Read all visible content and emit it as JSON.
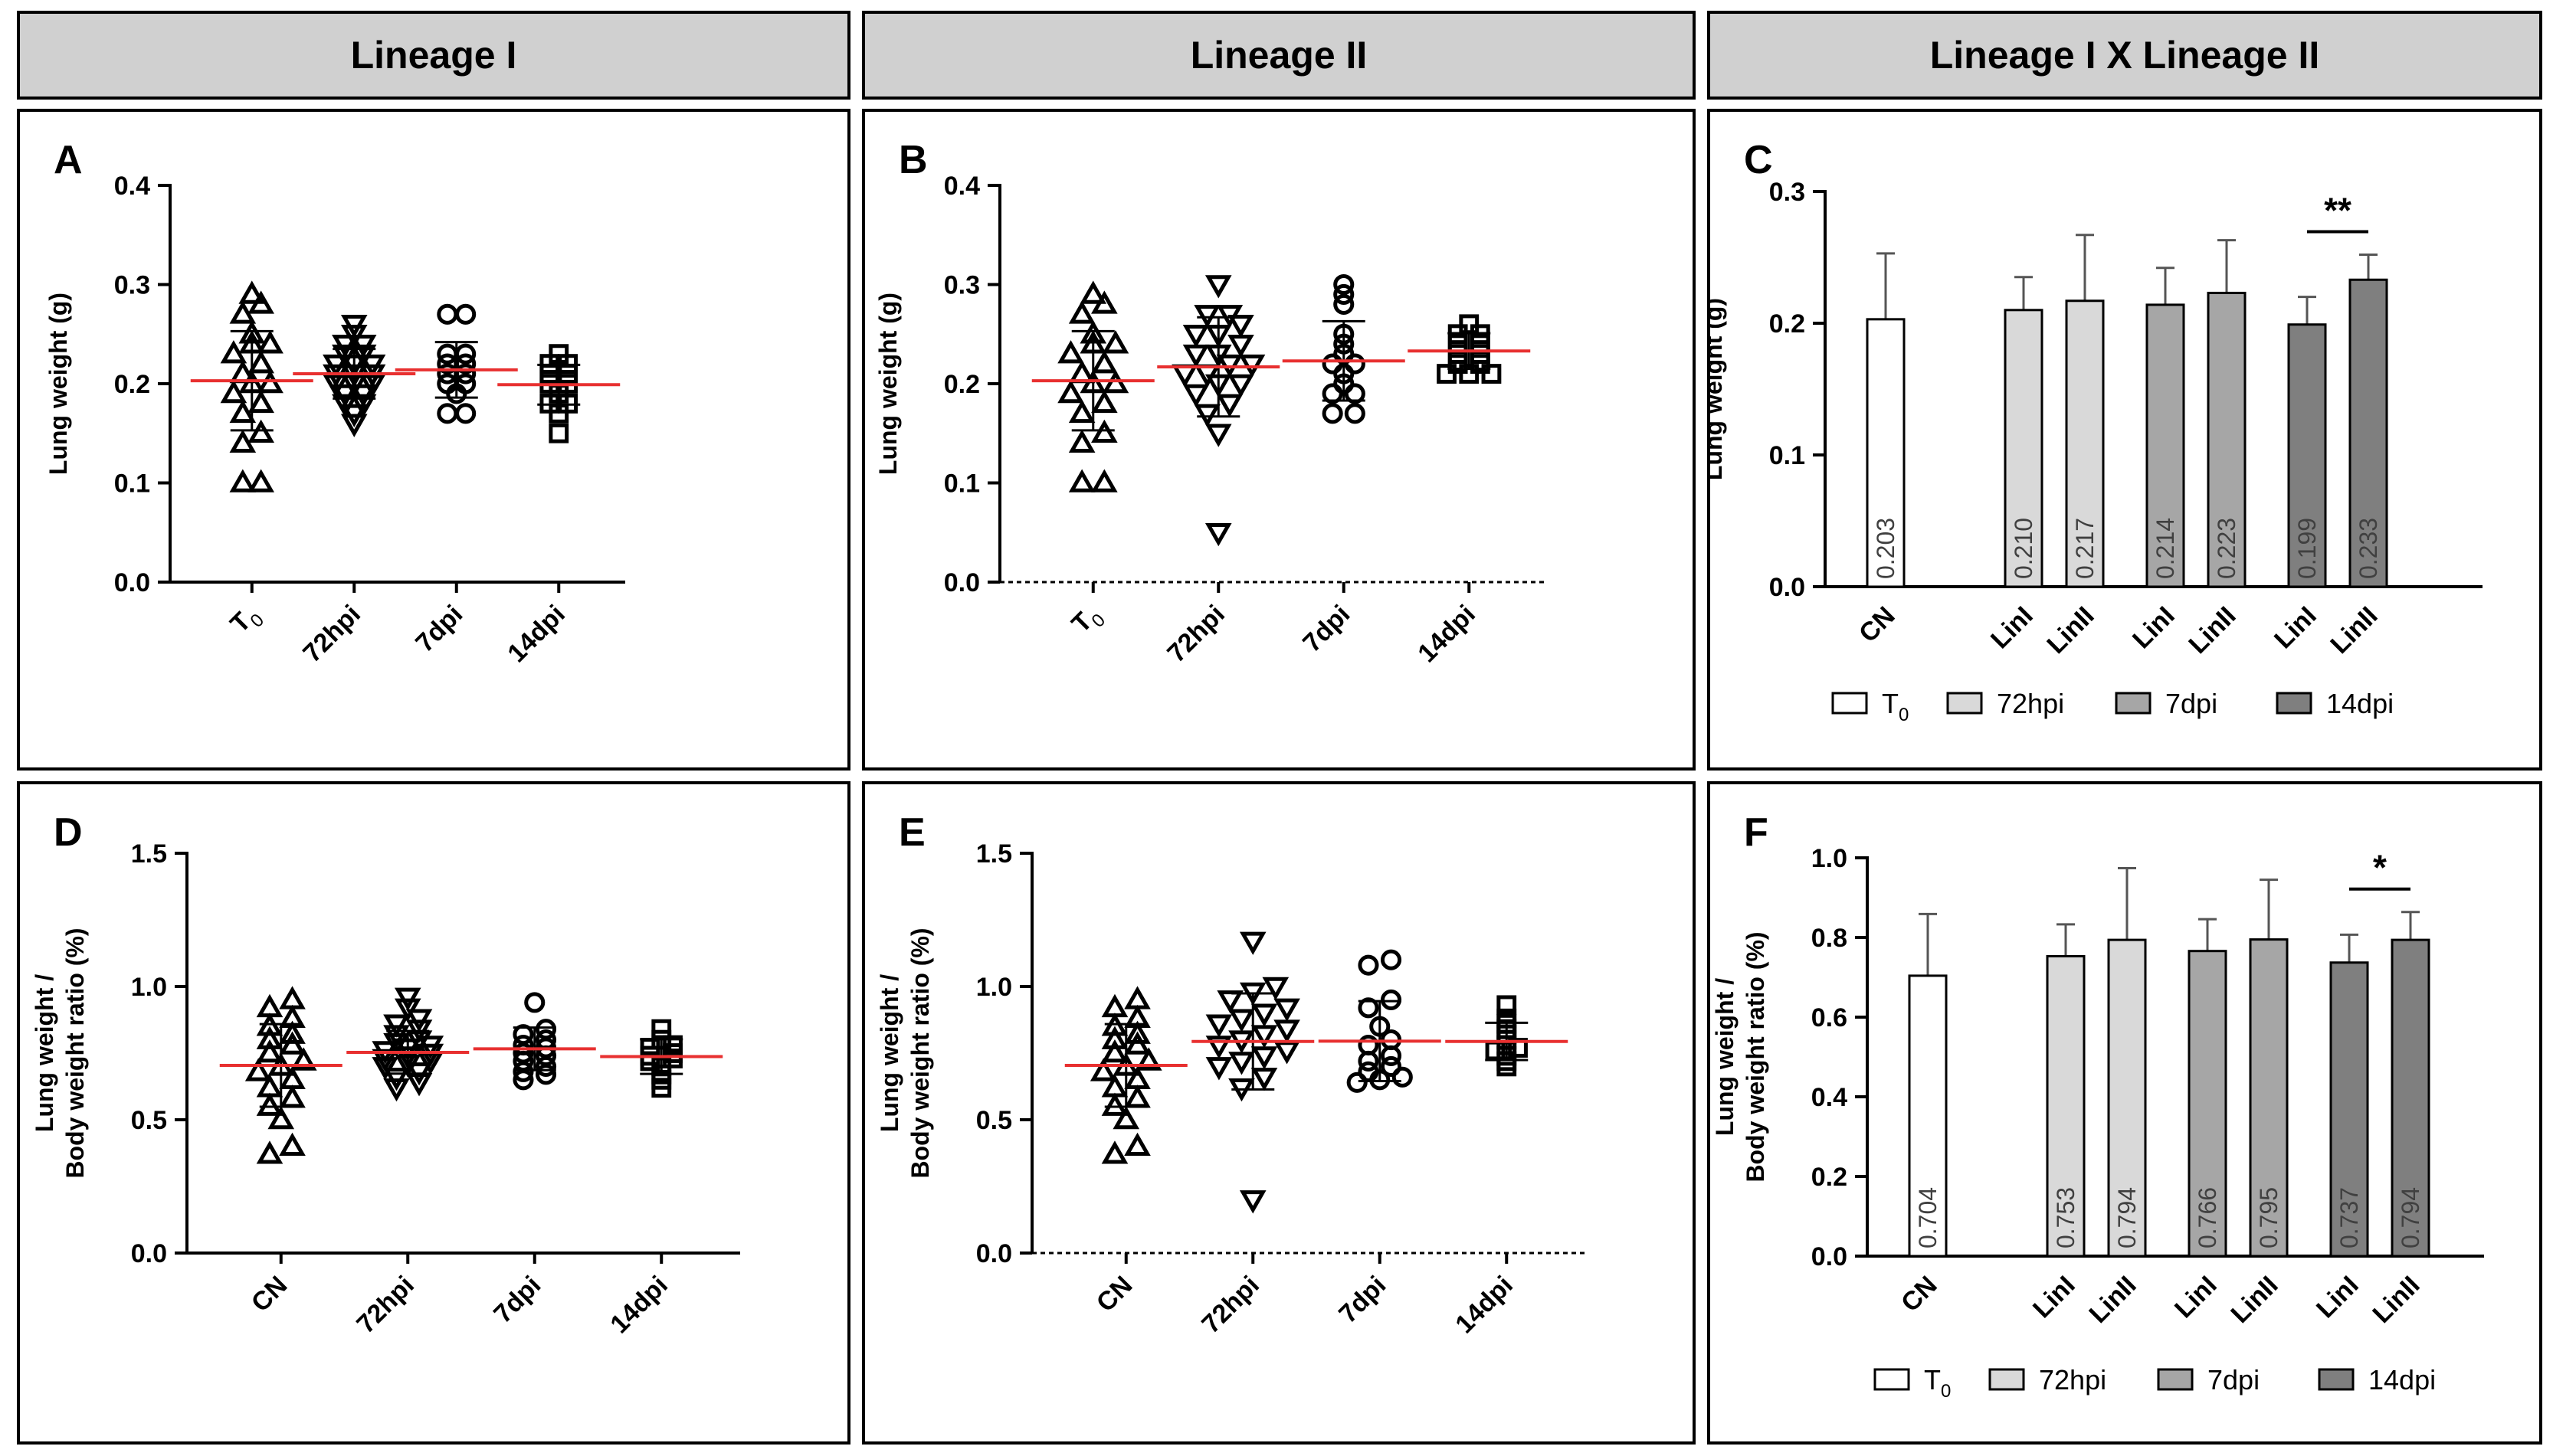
{
  "headers": [
    "Lineage I",
    "Lineage II",
    "Lineage I X Lineage II"
  ],
  "colors": {
    "mean_line": "#e83030",
    "bar_T0": "#ffffff",
    "bar_72hpi": "#d9d9d9",
    "bar_7dpi": "#a6a6a6",
    "bar_14dpi": "#7f7f7f"
  },
  "chart_data": [
    {
      "id": "A",
      "type": "scatter",
      "letter": "A",
      "ylabel": [
        "Lung weight (g)"
      ],
      "ylim": [
        0,
        0.4
      ],
      "yticks": [
        0.0,
        0.1,
        0.2,
        0.3,
        0.4
      ],
      "ytick_labels": [
        "0.0",
        "0.1",
        "0.2",
        "0.3",
        "0.4"
      ],
      "categories": [
        "T0",
        "72hpi",
        "7dpi",
        "14dpi"
      ],
      "tick_labels": [
        "T",
        "72hpi",
        "7dpi",
        "14dpi"
      ],
      "groups": [
        {
          "name": "T0",
          "marker": "triangle-up",
          "mean": 0.203,
          "sd": 0.05,
          "values": [
            0.1,
            0.1,
            0.14,
            0.15,
            0.17,
            0.18,
            0.19,
            0.2,
            0.2,
            0.21,
            0.22,
            0.23,
            0.24,
            0.24,
            0.25,
            0.27,
            0.28,
            0.29
          ]
        },
        {
          "name": "72hpi",
          "marker": "triangle-down",
          "mean": 0.21,
          "sd": 0.025,
          "values": [
            0.16,
            0.17,
            0.18,
            0.18,
            0.19,
            0.19,
            0.2,
            0.2,
            0.2,
            0.21,
            0.21,
            0.21,
            0.22,
            0.22,
            0.22,
            0.23,
            0.23,
            0.24,
            0.24,
            0.25,
            0.26
          ]
        },
        {
          "name": "7dpi",
          "marker": "circle",
          "mean": 0.214,
          "sd": 0.028,
          "values": [
            0.17,
            0.17,
            0.19,
            0.2,
            0.2,
            0.21,
            0.21,
            0.22,
            0.22,
            0.23,
            0.23,
            0.27,
            0.27
          ]
        },
        {
          "name": "14dpi",
          "marker": "square",
          "mean": 0.199,
          "sd": 0.02,
          "values": [
            0.15,
            0.17,
            0.18,
            0.18,
            0.19,
            0.2,
            0.2,
            0.21,
            0.21,
            0.22,
            0.22,
            0.23
          ]
        }
      ]
    },
    {
      "id": "B",
      "type": "scatter",
      "letter": "B",
      "ylabel": [
        "Lung weight (g)"
      ],
      "ylim": [
        0,
        0.4
      ],
      "yticks": [
        0.0,
        0.1,
        0.2,
        0.3,
        0.4
      ],
      "ytick_labels": [
        "0.0",
        "0.1",
        "0.2",
        "0.3",
        "0.4"
      ],
      "categories": [
        "T0",
        "72hpi",
        "7dpi",
        "14dpi"
      ],
      "tick_labels": [
        "T",
        "72hpi",
        "7dpi",
        "14dpi"
      ],
      "groups": [
        {
          "name": "T0",
          "marker": "triangle-up",
          "mean": 0.203,
          "sd": 0.05,
          "values": [
            0.1,
            0.1,
            0.14,
            0.15,
            0.17,
            0.18,
            0.19,
            0.2,
            0.2,
            0.21,
            0.22,
            0.23,
            0.24,
            0.24,
            0.25,
            0.27,
            0.28,
            0.29
          ]
        },
        {
          "name": "72hpi",
          "marker": "triangle-down",
          "mean": 0.217,
          "sd": 0.05,
          "values": [
            0.05,
            0.15,
            0.17,
            0.18,
            0.19,
            0.2,
            0.2,
            0.21,
            0.21,
            0.22,
            0.22,
            0.23,
            0.23,
            0.24,
            0.25,
            0.25,
            0.26,
            0.27,
            0.27,
            0.3
          ]
        },
        {
          "name": "7dpi",
          "marker": "circle",
          "mean": 0.223,
          "sd": 0.04,
          "values": [
            0.17,
            0.17,
            0.19,
            0.19,
            0.2,
            0.21,
            0.22,
            0.22,
            0.23,
            0.24,
            0.25,
            0.28,
            0.29,
            0.3
          ]
        },
        {
          "name": "14dpi",
          "marker": "square",
          "mean": 0.233,
          "sd": 0.018,
          "values": [
            0.21,
            0.21,
            0.21,
            0.22,
            0.22,
            0.23,
            0.23,
            0.24,
            0.24,
            0.25,
            0.25,
            0.26
          ]
        }
      ]
    },
    {
      "id": "C",
      "type": "bar",
      "letter": "C",
      "ylabel": [
        "Lung weight (g)"
      ],
      "ylim": [
        0,
        0.3
      ],
      "yticks": [
        0.0,
        0.1,
        0.2,
        0.3
      ],
      "ytick_labels": [
        "0.0",
        "0.1",
        "0.2",
        "0.3"
      ],
      "bars": [
        {
          "label": "CN",
          "group": "T0",
          "value": 0.203,
          "err": 0.05,
          "value_label": "0.203"
        },
        {
          "label": "LinI",
          "group": "72hpi",
          "value": 0.21,
          "err": 0.025,
          "value_label": "0.210"
        },
        {
          "label": "LinII",
          "group": "72hpi",
          "value": 0.217,
          "err": 0.05,
          "value_label": "0.217"
        },
        {
          "label": "LinI",
          "group": "7dpi",
          "value": 0.214,
          "err": 0.028,
          "value_label": "0.214"
        },
        {
          "label": "LinII",
          "group": "7dpi",
          "value": 0.223,
          "err": 0.04,
          "value_label": "0.223"
        },
        {
          "label": "LinI",
          "group": "14dpi",
          "value": 0.199,
          "err": 0.021,
          "value_label": "0.199"
        },
        {
          "label": "LinII",
          "group": "14dpi",
          "value": 0.233,
          "err": 0.019,
          "value_label": "0.233"
        }
      ],
      "significance": {
        "between": [
          5,
          6
        ],
        "text": "**"
      },
      "legend": [
        "T",
        "72hpi",
        "7dpi",
        "14dpi"
      ]
    },
    {
      "id": "D",
      "type": "scatter",
      "letter": "D",
      "ylabel": [
        "Lung weight /",
        "Body weight ratio (%)"
      ],
      "ylim": [
        0,
        1.5
      ],
      "yticks": [
        0.0,
        0.5,
        1.0,
        1.5
      ],
      "ytick_labels": [
        "0.0",
        "0.5",
        "1.0",
        "1.5"
      ],
      "categories": [
        "CN",
        "72hpi",
        "7dpi",
        "14dpi"
      ],
      "tick_labels": [
        "CN",
        "72hpi",
        "7dpi",
        "14dpi"
      ],
      "groups": [
        {
          "name": "CN",
          "marker": "triangle-up",
          "mean": 0.704,
          "sd": 0.155,
          "values": [
            0.37,
            0.4,
            0.5,
            0.55,
            0.58,
            0.62,
            0.65,
            0.68,
            0.7,
            0.72,
            0.75,
            0.78,
            0.8,
            0.82,
            0.85,
            0.88,
            0.92,
            0.95
          ]
        },
        {
          "name": "72hpi",
          "marker": "triangle-down",
          "mean": 0.753,
          "sd": 0.08,
          "values": [
            0.62,
            0.64,
            0.66,
            0.68,
            0.7,
            0.71,
            0.72,
            0.73,
            0.74,
            0.75,
            0.76,
            0.77,
            0.78,
            0.79,
            0.8,
            0.82,
            0.84,
            0.86,
            0.88,
            0.92,
            0.96
          ]
        },
        {
          "name": "7dpi",
          "marker": "circle",
          "mean": 0.766,
          "sd": 0.08,
          "values": [
            0.65,
            0.67,
            0.68,
            0.7,
            0.72,
            0.74,
            0.75,
            0.77,
            0.78,
            0.8,
            0.82,
            0.84,
            0.94
          ]
        },
        {
          "name": "14dpi",
          "marker": "square",
          "mean": 0.737,
          "sd": 0.065,
          "values": [
            0.62,
            0.65,
            0.67,
            0.7,
            0.72,
            0.73,
            0.74,
            0.75,
            0.77,
            0.78,
            0.8,
            0.84
          ]
        }
      ]
    },
    {
      "id": "E",
      "type": "scatter",
      "letter": "E",
      "ylabel": [
        "Lung weight /",
        "Body weight ratio (%)"
      ],
      "ylim": [
        0,
        1.5
      ],
      "yticks": [
        0.0,
        0.5,
        1.0,
        1.5
      ],
      "ytick_labels": [
        "0.0",
        "0.5",
        "1.0",
        "1.5"
      ],
      "categories": [
        "CN",
        "72hpi",
        "7dpi",
        "14dpi"
      ],
      "tick_labels": [
        "CN",
        "72hpi",
        "7dpi",
        "14dpi"
      ],
      "groups": [
        {
          "name": "CN",
          "marker": "triangle-up",
          "mean": 0.704,
          "sd": 0.155,
          "values": [
            0.37,
            0.4,
            0.5,
            0.55,
            0.58,
            0.62,
            0.65,
            0.68,
            0.7,
            0.72,
            0.75,
            0.78,
            0.8,
            0.82,
            0.85,
            0.88,
            0.92,
            0.95
          ]
        },
        {
          "name": "72hpi",
          "marker": "triangle-down",
          "mean": 0.794,
          "sd": 0.18,
          "values": [
            0.2,
            0.62,
            0.66,
            0.7,
            0.72,
            0.74,
            0.76,
            0.78,
            0.8,
            0.82,
            0.84,
            0.86,
            0.88,
            0.9,
            0.92,
            0.95,
            0.98,
            1.0,
            1.17
          ]
        },
        {
          "name": "7dpi",
          "marker": "circle",
          "mean": 0.795,
          "sd": 0.15,
          "values": [
            0.64,
            0.65,
            0.66,
            0.68,
            0.7,
            0.72,
            0.74,
            0.78,
            0.8,
            0.85,
            0.92,
            0.95,
            1.08,
            1.1
          ]
        },
        {
          "name": "14dpi",
          "marker": "square",
          "mean": 0.794,
          "sd": 0.07,
          "values": [
            0.7,
            0.72,
            0.74,
            0.76,
            0.77,
            0.78,
            0.8,
            0.82,
            0.84,
            0.86,
            0.88,
            0.93
          ]
        }
      ]
    },
    {
      "id": "F",
      "type": "bar",
      "letter": "F",
      "ylabel": [
        "Lung weight /",
        "Body weight ratio (%)"
      ],
      "ylim": [
        0,
        1.0
      ],
      "yticks": [
        0.0,
        0.2,
        0.4,
        0.6,
        0.8,
        1.0
      ],
      "ytick_labels": [
        "0.0",
        "0.2",
        "0.4",
        "0.6",
        "0.8",
        "1.0"
      ],
      "bars": [
        {
          "label": "CN",
          "group": "T0",
          "value": 0.704,
          "err": 0.155,
          "value_label": "0.704"
        },
        {
          "label": "LinI",
          "group": "72hpi",
          "value": 0.753,
          "err": 0.08,
          "value_label": "0.753"
        },
        {
          "label": "LinII",
          "group": "72hpi",
          "value": 0.794,
          "err": 0.18,
          "value_label": "0.794"
        },
        {
          "label": "LinI",
          "group": "7dpi",
          "value": 0.766,
          "err": 0.08,
          "value_label": "0.766"
        },
        {
          "label": "LinII",
          "group": "7dpi",
          "value": 0.795,
          "err": 0.15,
          "value_label": "0.795"
        },
        {
          "label": "LinI",
          "group": "14dpi",
          "value": 0.737,
          "err": 0.07,
          "value_label": "0.737"
        },
        {
          "label": "LinII",
          "group": "14dpi",
          "value": 0.794,
          "err": 0.07,
          "value_label": "0.794"
        }
      ],
      "significance": {
        "between": [
          5,
          6
        ],
        "text": "*"
      },
      "legend": [
        "T",
        "72hpi",
        "7dpi",
        "14dpi"
      ]
    }
  ]
}
